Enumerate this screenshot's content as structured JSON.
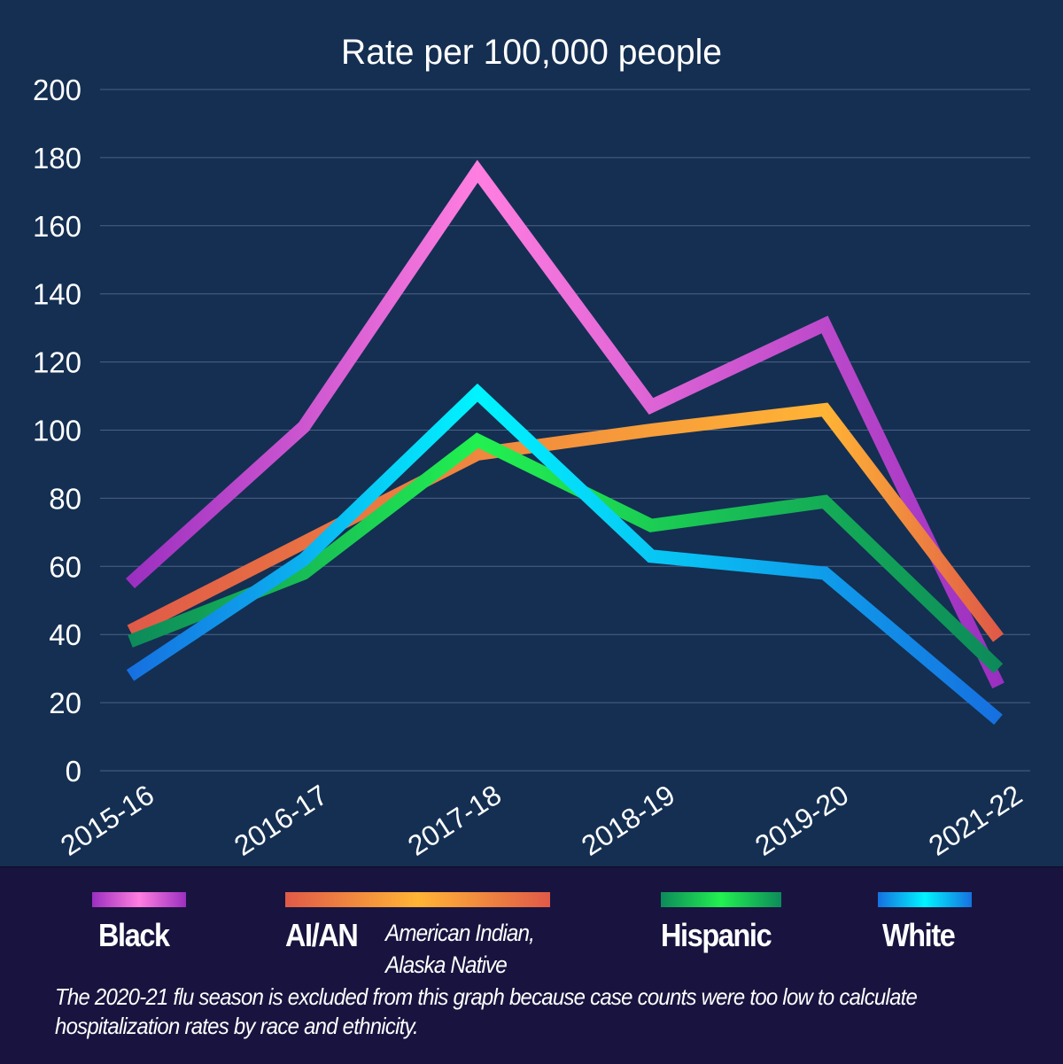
{
  "chart_data": {
    "type": "line",
    "title": "Rate per 100,000 people",
    "xlabel": "",
    "ylabel": "",
    "categories": [
      "2015-16",
      "2016-17",
      "2017-18",
      "2018-19",
      "2019-20",
      "2021-22"
    ],
    "ylim": [
      0,
      200
    ],
    "yticks": [
      0,
      20,
      40,
      60,
      80,
      100,
      120,
      140,
      160,
      180,
      200
    ],
    "grid": true,
    "legend_placement": "bottom",
    "series": [
      {
        "name": "Black",
        "values": [
          55,
          101,
          176,
          107,
          131,
          25
        ],
        "colors": [
          "#9b2fc0",
          "#ff7ee0",
          "#9b2fc0"
        ]
      },
      {
        "name": "AI/AN",
        "values": [
          41,
          67,
          93,
          100,
          106,
          39
        ],
        "colors": [
          "#e05a48",
          "#ffb435",
          "#e05a48"
        ]
      },
      {
        "name": "Hispanic",
        "values": [
          38,
          58,
          97,
          72,
          79,
          30
        ],
        "colors": [
          "#0d8a5a",
          "#22f050",
          "#0d8a5a"
        ]
      },
      {
        "name": "White",
        "values": [
          28,
          62,
          111,
          63,
          58,
          15
        ],
        "colors": [
          "#1670e0",
          "#00f4ff",
          "#1670e0"
        ]
      }
    ]
  },
  "legend": {
    "items": [
      {
        "label": "Black",
        "sublabel": ""
      },
      {
        "label": "AI/AN",
        "sublabel_line1": "American Indian,",
        "sublabel_line2": "Alaska Native"
      },
      {
        "label": "Hispanic",
        "sublabel": ""
      },
      {
        "label": "White",
        "sublabel": ""
      }
    ]
  },
  "note": "The 2020-21 flu season is excluded from this graph because case counts were too low to calculate hospitalization rates by race and ethnicity."
}
